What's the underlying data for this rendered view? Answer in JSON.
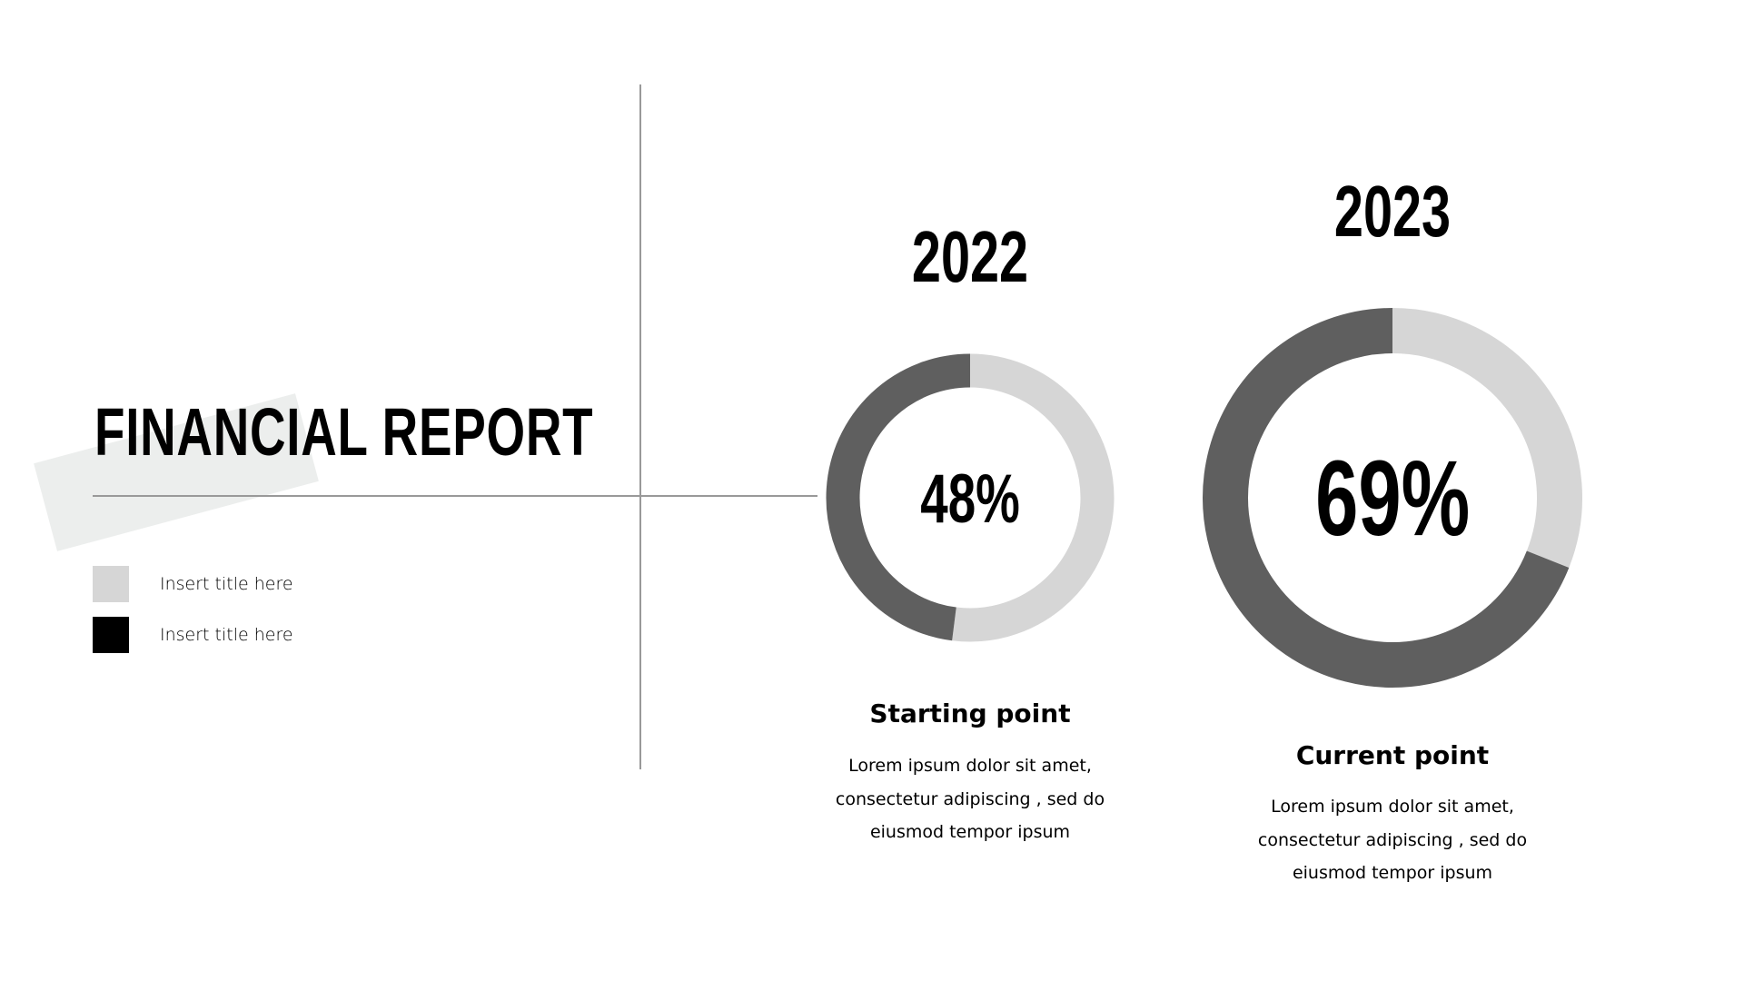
{
  "title": "FINANCIAL REPORT",
  "legend": [
    {
      "label": "Insert title here",
      "color": "#d6d6d6"
    },
    {
      "label": "Insert title here",
      "color": "#000000"
    }
  ],
  "colors": {
    "value_arc": "#5f5f5f",
    "remainder_arc": "#d6d6d6",
    "accent_shape": "#eceeed",
    "divider": "#999999"
  },
  "chart_data": [
    {
      "type": "pie",
      "variant": "donut",
      "title": "2022",
      "center_label": "48%",
      "values": [
        48,
        52
      ],
      "value": 48,
      "caption": "Starting point",
      "description": [
        "Lorem ipsum dolor sit amet,",
        "consectetur adipiscing , sed do",
        "eiusmod tempor  ipsum"
      ]
    },
    {
      "type": "pie",
      "variant": "donut",
      "title": "2023",
      "center_label": "69%",
      "values": [
        69,
        31
      ],
      "value": 69,
      "caption": "Current point",
      "description": [
        "Lorem ipsum dolor sit amet,",
        "consectetur adipiscing , sed do",
        "eiusmod tempor  ipsum"
      ]
    }
  ]
}
